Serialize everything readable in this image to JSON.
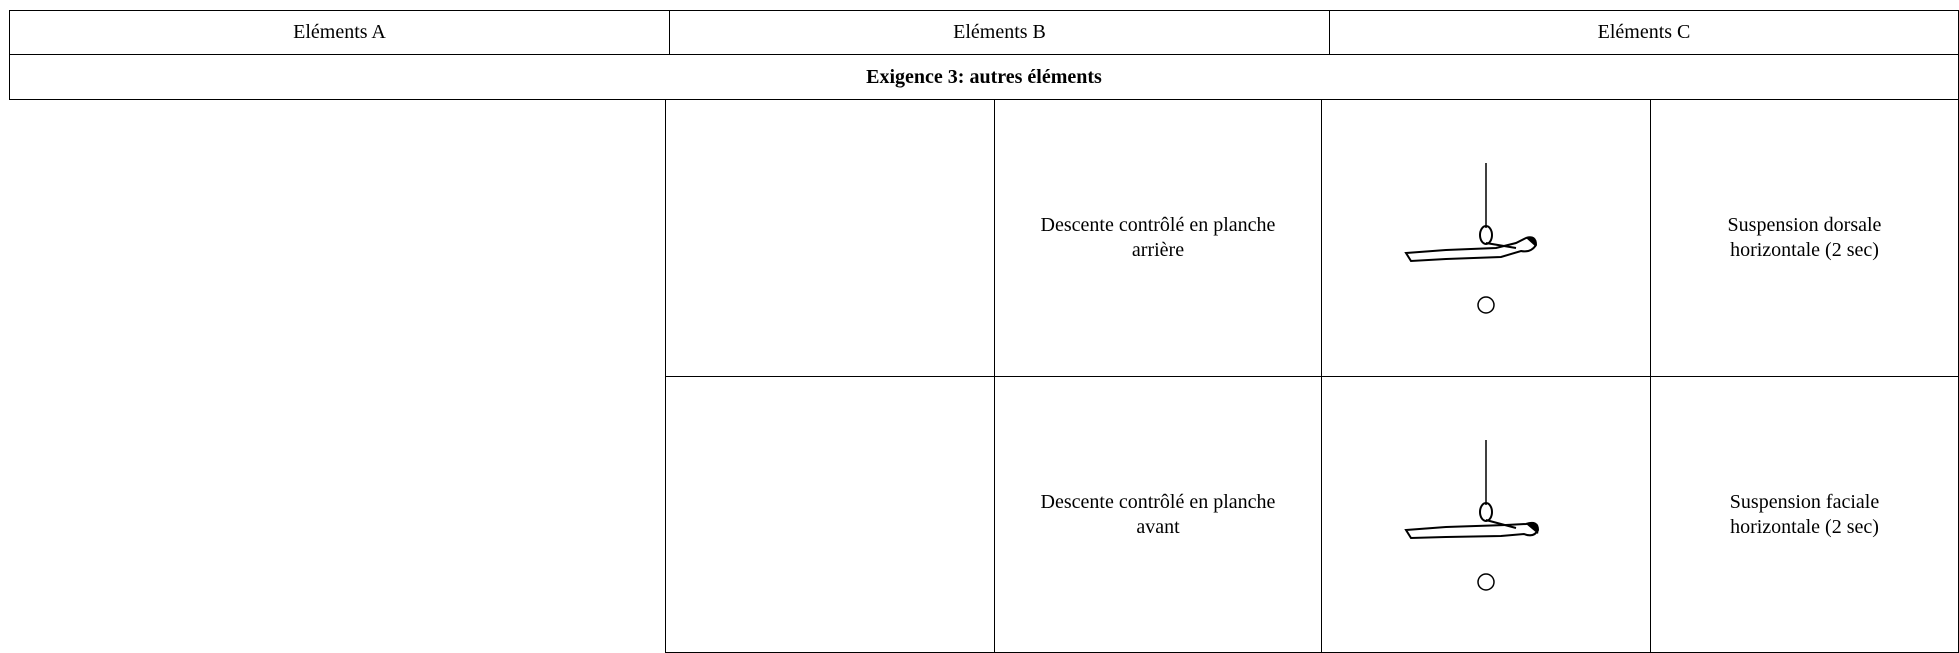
{
  "table": {
    "header": [
      "Eléments A",
      "Eléments B",
      "Eléments C"
    ],
    "section_title": "Exigence 3: autres éléments",
    "rows": [
      [
        "Descente contrôlé en planche arrière",
        "Suspension dorsale horizontale (2 sec)"
      ],
      [
        "Descente contrôlé en planche avant",
        "Suspension faciale horizontale (2 sec)"
      ]
    ]
  }
}
